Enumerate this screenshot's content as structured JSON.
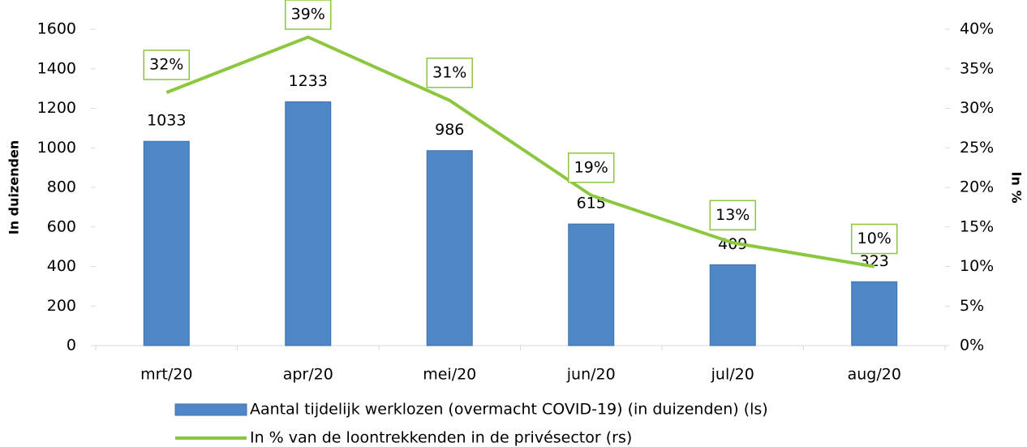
{
  "chart_data": {
    "type": "bar",
    "categories": [
      "mrt/20",
      "apr/20",
      "mei/20",
      "jun/20",
      "jul/20",
      "aug/20"
    ],
    "series": [
      {
        "name": "Aantal tijdelijk werklozen (overmacht COVID-19) (in duizenden) (ls)",
        "type": "bar",
        "color": "#4f86c6",
        "values": [
          1033,
          1233,
          986,
          615,
          409,
          323
        ]
      },
      {
        "name": "In % van de loontrekkenden in de privésector (rs)",
        "type": "line",
        "axis": "y2",
        "color": "#8dc63f",
        "values": [
          32,
          39,
          31,
          19,
          13,
          10
        ],
        "value_labels": [
          "32%",
          "39%",
          "31%",
          "19%",
          "13%",
          "10%"
        ]
      }
    ],
    "ylabel": "In duizenden",
    "y2label": "In %",
    "ylim": [
      0,
      1600
    ],
    "yticks": [
      0,
      200,
      400,
      600,
      800,
      1000,
      1200,
      1400,
      1600
    ],
    "y2lim": [
      0,
      40
    ],
    "y2ticks": [
      {
        "value": 0,
        "label": "0%"
      },
      {
        "value": 5,
        "label": "5%"
      },
      {
        "value": 10,
        "label": "10%"
      },
      {
        "value": 15,
        "label": "15%"
      },
      {
        "value": 20,
        "label": "20%"
      },
      {
        "value": 25,
        "label": "25%"
      },
      {
        "value": 30,
        "label": "30%"
      },
      {
        "value": 35,
        "label": "35%"
      },
      {
        "value": 40,
        "label": "40%"
      }
    ],
    "grid": false,
    "legend": "bottom"
  }
}
